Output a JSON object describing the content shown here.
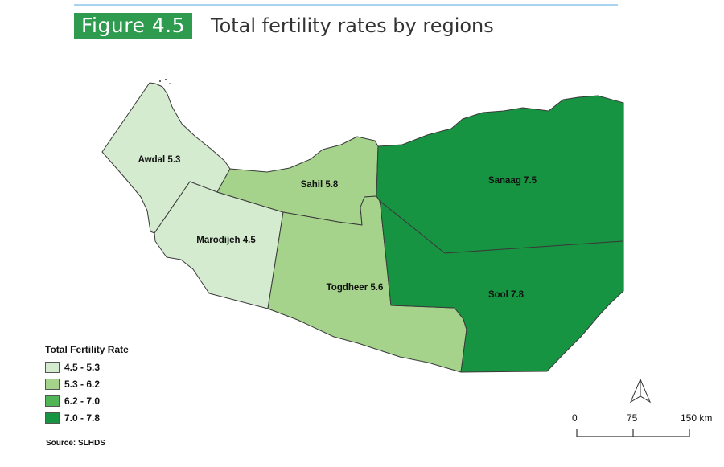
{
  "figure": {
    "badge": "Figure 4.5",
    "title": "Total fertility rates by regions"
  },
  "regions": [
    {
      "name": "Awdal",
      "value": "5.3",
      "label": "Awdal 5.3",
      "fill": "#d4ebcf"
    },
    {
      "name": "Marodijeh",
      "value": "4.5",
      "label": "Marodijeh 4.5",
      "fill": "#d4ebcf"
    },
    {
      "name": "Sahil",
      "value": "5.8",
      "label": "Sahil 5.8",
      "fill": "#a5d38c"
    },
    {
      "name": "Togdheer",
      "value": "5.6",
      "label": "Togdheer 5.6",
      "fill": "#a5d38c"
    },
    {
      "name": "Sanaag",
      "value": "7.5",
      "label": "Sanaag 7.5",
      "fill": "#179442"
    },
    {
      "name": "Sool",
      "value": "7.8",
      "label": "Sool 7.8",
      "fill": "#179442"
    }
  ],
  "legend": {
    "title": "Total Fertility Rate",
    "items": [
      {
        "label": "4.5 - 5.3",
        "color": "#d4ebcf"
      },
      {
        "label": "5.3 - 6.2",
        "color": "#a5d38c"
      },
      {
        "label": "6.2 - 7.0",
        "color": "#4fb557"
      },
      {
        "label": "7.0 - 7.8",
        "color": "#179442"
      }
    ]
  },
  "scale_bar": {
    "ticks": [
      "0",
      "75",
      "150 km"
    ]
  },
  "north_arrow_icon": "north-arrow-icon",
  "source": "Source: SLHDS",
  "colors": {
    "accent": "#2e9b4f",
    "rule": "#a9d4ef"
  }
}
